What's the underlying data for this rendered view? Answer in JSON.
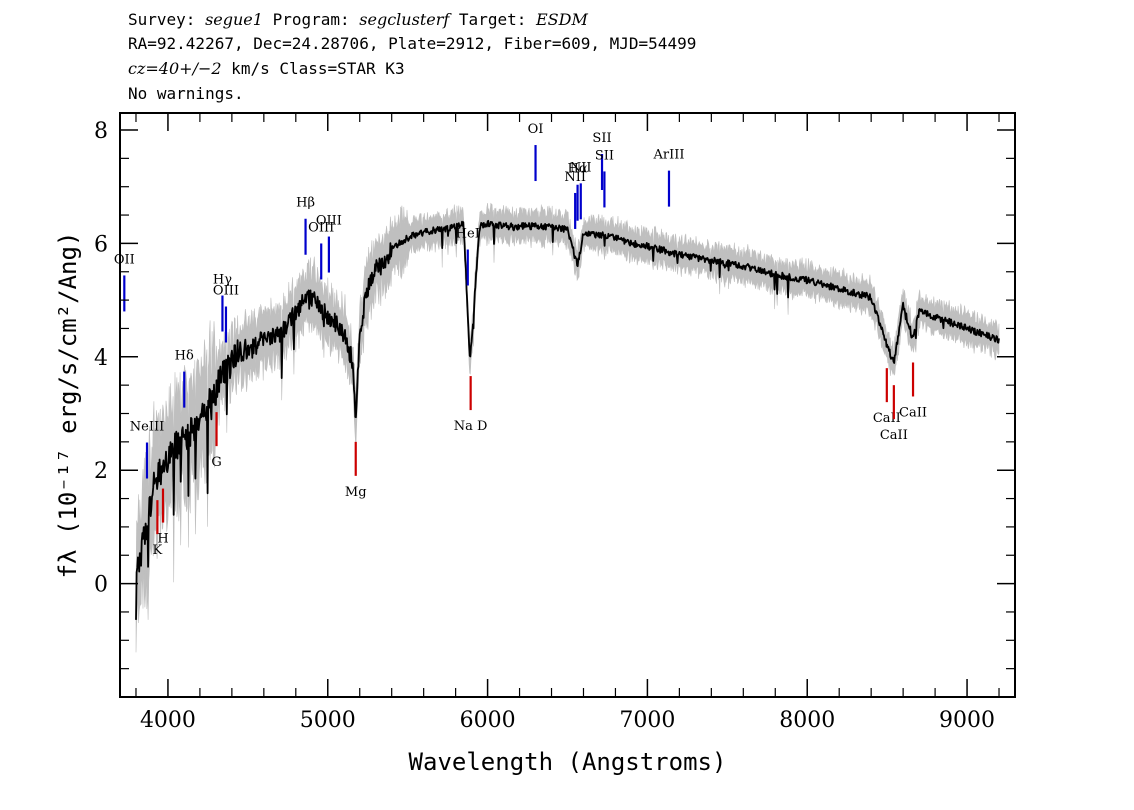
{
  "header": {
    "line1_k1": "Survey:",
    "line1_v1": "segue1",
    "line1_k2": "Program:",
    "line1_v2": "segclusterf",
    "line1_k3": "Target:",
    "line1_v3": "ESDM",
    "line2": "RA=92.42267, Dec=24.28706, Plate=2912, Fiber=609, MJD=54499",
    "line3_v": "cz=40+/−2",
    "line3_rest": " km/s Class=STAR K3",
    "line4": "No warnings."
  },
  "chart_data": {
    "type": "line",
    "xlabel": "Wavelength (Angstroms)",
    "ylabel": "fλ (10⁻¹⁷ erg/s/cm²/Ang)",
    "xlim": [
      3700,
      9300
    ],
    "ylim": [
      -2,
      8.3
    ],
    "x_ticks": [
      4000,
      5000,
      6000,
      7000,
      8000,
      9000
    ],
    "y_ticks": [
      0,
      2,
      4,
      6,
      8
    ],
    "colors": {
      "flux": "#000000",
      "error": "#bfbfbf",
      "emission": "#0000cc",
      "absorption": "#cc0000"
    },
    "series": [
      {
        "x": [
          3800,
          3850,
          3880,
          3900,
          3950,
          4000,
          4050,
          4100,
          4150,
          4200,
          4250,
          4300,
          4350,
          4400,
          4450,
          4500,
          4550,
          4600,
          4650,
          4700,
          4750,
          4800,
          4850,
          4900,
          4950,
          5000,
          5050,
          5100,
          5150,
          5175,
          5200,
          5250,
          5300,
          5350,
          5400,
          5500,
          5600,
          5700,
          5800,
          5850,
          5890,
          5950,
          6000,
          6100,
          6200,
          6300,
          6400,
          6500,
          6563,
          6600,
          6700,
          6800,
          6900,
          7000,
          7200,
          7400,
          7600,
          7800,
          8000,
          8200,
          8400,
          8498,
          8542,
          8600,
          8662,
          8700,
          8800,
          8900,
          9000,
          9100,
          9200
        ],
        "y": [
          0.2,
          0.8,
          1.2,
          1.6,
          2.0,
          2.2,
          2.4,
          2.6,
          2.7,
          2.8,
          3.2,
          3.4,
          3.7,
          3.9,
          4.1,
          4.1,
          4.2,
          4.3,
          4.4,
          4.4,
          4.6,
          4.8,
          5.0,
          5.0,
          4.9,
          4.7,
          4.6,
          4.4,
          4.0,
          2.9,
          4.5,
          5.2,
          5.6,
          5.6,
          5.9,
          6.1,
          6.2,
          6.25,
          6.3,
          6.35,
          3.9,
          6.3,
          6.35,
          6.3,
          6.3,
          6.3,
          6.3,
          6.25,
          5.6,
          6.2,
          6.15,
          6.1,
          6.0,
          5.95,
          5.8,
          5.7,
          5.6,
          5.45,
          5.35,
          5.2,
          5.05,
          4.2,
          3.9,
          4.9,
          4.3,
          4.8,
          4.7,
          4.6,
          4.5,
          4.4,
          4.3
        ]
      }
    ],
    "emission_lines": [
      {
        "label": "OII",
        "wave": 3727
      },
      {
        "label": "NeIII",
        "wave": 3869
      },
      {
        "label": "Hδ",
        "wave": 4102
      },
      {
        "label": "Hγ",
        "wave": 4341
      },
      {
        "label": "OIII",
        "wave": 4363
      },
      {
        "label": "Hβ",
        "wave": 4861
      },
      {
        "label": "OIII",
        "wave": 4959
      },
      {
        "label": "OIII",
        "wave": 5007
      },
      {
        "label": "HeI",
        "wave": 5876
      },
      {
        "label": "OI",
        "wave": 6300
      },
      {
        "label": "NII",
        "wave": 6548
      },
      {
        "label": "Hα",
        "wave": 6563
      },
      {
        "label": "NII",
        "wave": 6583
      },
      {
        "label": "SII",
        "wave": 6716
      },
      {
        "label": "SII",
        "wave": 6731
      },
      {
        "label": "ArIII",
        "wave": 7135
      }
    ],
    "absorption_lines": [
      {
        "label": "K",
        "wave": 3934
      },
      {
        "label": "H",
        "wave": 3969
      },
      {
        "label": "G",
        "wave": 4304
      },
      {
        "label": "Mg",
        "wave": 5175
      },
      {
        "label": "Na  D",
        "wave": 5894
      },
      {
        "label": "CaII",
        "wave": 8498
      },
      {
        "label": "CaII",
        "wave": 8542
      },
      {
        "label": "CaII",
        "wave": 8662
      }
    ]
  }
}
